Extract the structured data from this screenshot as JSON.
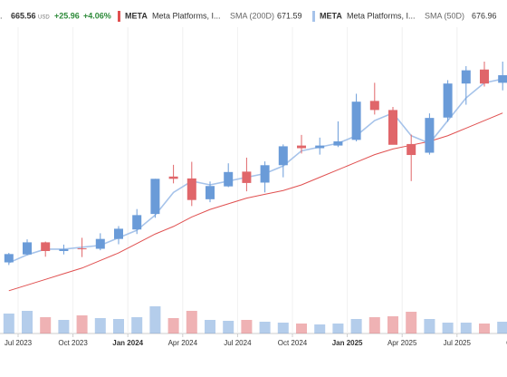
{
  "chart_data": {
    "type": "candlestick",
    "header": {
      "lead": ".",
      "price": 665.56,
      "currency": "USD",
      "change": {
        "value": 25.96,
        "label": "+25.96"
      },
      "change_pct": {
        "value": 4.06,
        "label": "+4.06%"
      }
    },
    "categories": [
      "2023-06",
      "2023-07",
      "2023-08",
      "2023-09",
      "2023-10",
      "2023-11",
      "2023-12",
      "2024-01",
      "2024-02",
      "2024-03",
      "2024-04",
      "2024-05",
      "2024-06",
      "2024-07",
      "2024-08",
      "2024-09",
      "2024-10",
      "2024-11",
      "2024-12",
      "2025-01",
      "2025-02",
      "2025-03",
      "2025-04",
      "2025-05",
      "2025-06",
      "2025-07",
      "2025-08",
      "2025-09"
    ],
    "open": [
      265,
      286,
      318,
      295,
      302,
      301,
      327,
      352,
      393,
      492,
      487,
      432,
      466,
      505,
      476,
      522,
      574,
      567,
      574,
      589,
      692,
      668,
      578,
      555,
      648,
      738,
      775,
      740
    ],
    "high": [
      290,
      326,
      320,
      312,
      330,
      342,
      361,
      406,
      486,
      523,
      531,
      479,
      527,
      542,
      532,
      577,
      602,
      595,
      638,
      711,
      740,
      676,
      603,
      659,
      747,
      784,
      796,
      796
    ],
    "low": [
      258,
      284,
      280,
      286,
      279,
      297,
      313,
      340,
      383,
      474,
      414,
      424,
      464,
      453,
      450,
      490,
      553,
      550,
      570,
      585,
      656,
      577,
      480,
      550,
      637,
      682,
      730,
      720
    ],
    "close": [
      287,
      318,
      295,
      300,
      301,
      327,
      354,
      390,
      486,
      486,
      430,
      467,
      504,
      475,
      522,
      572,
      567,
      574,
      585,
      690,
      668,
      576,
      549,
      647,
      738,
      773,
      738,
      760
    ],
    "volume": [
      22,
      25,
      18,
      15,
      20,
      17,
      16,
      18,
      30,
      17,
      25,
      15,
      14,
      15,
      13,
      12,
      11,
      10,
      11,
      16,
      18,
      19,
      24,
      16,
      12,
      12,
      11,
      13
    ],
    "up_color": "#6a9bd8",
    "down_color": "#e0666a",
    "ylim": [
      144,
      911
    ],
    "volume_lim": [
      0,
      60
    ],
    "series": [
      {
        "name": "META",
        "desc": "Meta Platforms, I...",
        "indicator": "SMA (200D)",
        "last": 671.59,
        "color": "#e05050",
        "values": [
          190,
          205,
          220,
          235,
          250,
          270,
          290,
          315,
          340,
          360,
          385,
          405,
          420,
          435,
          445,
          455,
          470,
          490,
          510,
          530,
          550,
          565,
          575,
          585,
          600,
          620,
          640,
          660
        ]
      },
      {
        "name": "META",
        "desc": "Meta Platforms, I...",
        "indicator": "SMA (50D)",
        "last": 676.96,
        "color": "#a6c3ea",
        "values": [
          264,
          285,
          300,
          300,
          305,
          310,
          330,
          350,
          390,
          450,
          480,
          470,
          480,
          490,
          500,
          520,
          560,
          570,
          580,
          600,
          640,
          660,
          600,
          580,
          640,
          700,
          740,
          750
        ]
      }
    ],
    "xticks": [
      {
        "value": "2023-07",
        "label": "Jul 2023"
      },
      {
        "value": "2023-10",
        "label": "Oct 2023"
      },
      {
        "value": "2024-01",
        "label": "Jan 2024"
      },
      {
        "value": "2024-04",
        "label": "Apr 2024"
      },
      {
        "value": "2024-07",
        "label": "Jul 2024"
      },
      {
        "value": "2024-10",
        "label": "Oct 2024"
      },
      {
        "value": "2025-01",
        "label": "Jan 2025"
      },
      {
        "value": "2025-04",
        "label": "Apr 2025"
      },
      {
        "value": "2025-07",
        "label": "Jul 2025"
      },
      {
        "value": "2025-10",
        "label": "Oct"
      }
    ]
  }
}
